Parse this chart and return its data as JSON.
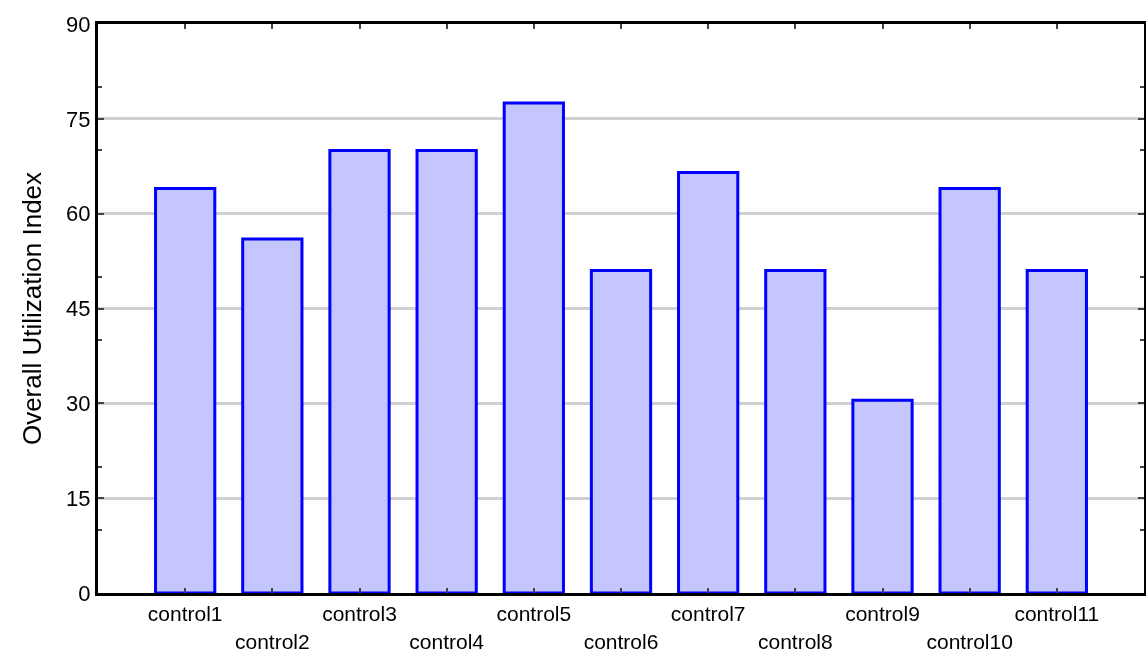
{
  "chart_data": {
    "type": "bar",
    "ylabel": "Overall Utilization Index",
    "categories": [
      "control1",
      "control2",
      "control3",
      "control4",
      "control5",
      "control6",
      "control7",
      "control8",
      "control9",
      "control10",
      "control11"
    ],
    "series": [
      {
        "color": "#0000ff",
        "values": [
          64,
          56,
          70,
          70,
          77.5,
          51,
          66.5,
          51,
          30.5,
          64,
          51
        ]
      }
    ],
    "ylim": [
      0,
      90
    ],
    "yticks": [
      0,
      15,
      30,
      45,
      60,
      75,
      90
    ],
    "grid": "y",
    "legend": false
  }
}
